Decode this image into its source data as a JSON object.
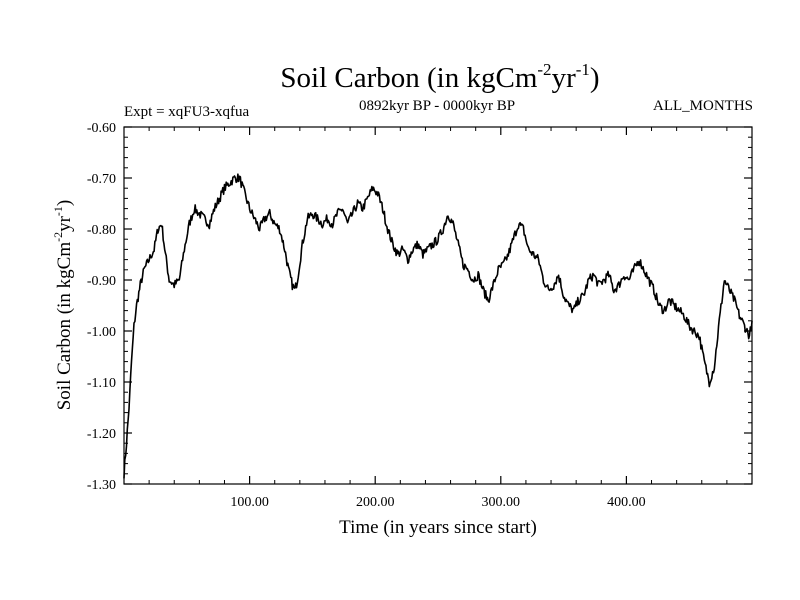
{
  "chart_data": {
    "type": "line",
    "title": "Soil Carbon (in kgCm",
    "title_sup1": "-2",
    "title_mid": "yr",
    "title_sup2": "-1",
    "title_end": ")",
    "subtitle_left": "Expt = xqFU3-xqfua",
    "subtitle_center": "0892kyr BP - 0000kyr BP",
    "subtitle_right": "ALL_MONTHS",
    "xlabel": "Time (in years since start)",
    "ylabel": "Soil Carbon (in kgCm",
    "ylabel_sup1": "-2",
    "ylabel_mid": "yr",
    "ylabel_sup2": "-1",
    "ylabel_end": ")",
    "xlim": [
      0,
      500
    ],
    "ylim": [
      -1.3,
      -0.6
    ],
    "xticks": [
      100,
      200,
      300,
      400
    ],
    "xtick_labels": [
      "100.00",
      "200.00",
      "300.00",
      "400.00"
    ],
    "yticks": [
      -1.3,
      -1.2,
      -1.1,
      -1.0,
      -0.9,
      -0.8,
      -0.7,
      -0.6
    ],
    "ytick_labels": [
      "-1.30",
      "-1.20",
      "-1.10",
      "-1.00",
      "-0.90",
      "-0.80",
      "-0.70",
      "-0.60"
    ],
    "series": [
      {
        "name": "Soil Carbon",
        "color": "#000000",
        "x": [
          0,
          2,
          4,
          6,
          8,
          10,
          13,
          16,
          20,
          24,
          27,
          30,
          33,
          36,
          40,
          44,
          48,
          52,
          56,
          60,
          64,
          68,
          72,
          76,
          80,
          84,
          88,
          92,
          96,
          100,
          104,
          108,
          112,
          116,
          120,
          124,
          128,
          131,
          134,
          136,
          138,
          142,
          146,
          150,
          154,
          158,
          162,
          166,
          170,
          174,
          178,
          182,
          186,
          190,
          194,
          198,
          202,
          206,
          210,
          214,
          218,
          222,
          226,
          230,
          234,
          238,
          242,
          246,
          250,
          254,
          258,
          262,
          266,
          270,
          274,
          278,
          282,
          286,
          290,
          294,
          298,
          302,
          306,
          310,
          314,
          318,
          322,
          326,
          330,
          334,
          338,
          342,
          346,
          350,
          354,
          358,
          362,
          366,
          370,
          374,
          378,
          382,
          386,
          390,
          394,
          398,
          402,
          406,
          410,
          414,
          418,
          422,
          426,
          430,
          434,
          438,
          442,
          446,
          450,
          454,
          458,
          462,
          466,
          470,
          474,
          478,
          482,
          486,
          490,
          494,
          498,
          500
        ],
        "values": [
          -1.28,
          -1.22,
          -1.15,
          -1.06,
          -0.99,
          -0.95,
          -0.91,
          -0.88,
          -0.86,
          -0.84,
          -0.8,
          -0.79,
          -0.85,
          -0.9,
          -0.91,
          -0.9,
          -0.84,
          -0.79,
          -0.76,
          -0.77,
          -0.78,
          -0.79,
          -0.76,
          -0.74,
          -0.72,
          -0.71,
          -0.7,
          -0.7,
          -0.73,
          -0.76,
          -0.78,
          -0.8,
          -0.78,
          -0.77,
          -0.79,
          -0.8,
          -0.84,
          -0.88,
          -0.91,
          -0.92,
          -0.9,
          -0.83,
          -0.78,
          -0.77,
          -0.78,
          -0.79,
          -0.78,
          -0.79,
          -0.77,
          -0.76,
          -0.79,
          -0.77,
          -0.75,
          -0.76,
          -0.74,
          -0.72,
          -0.73,
          -0.76,
          -0.8,
          -0.83,
          -0.85,
          -0.84,
          -0.86,
          -0.84,
          -0.83,
          -0.85,
          -0.84,
          -0.83,
          -0.82,
          -0.8,
          -0.77,
          -0.79,
          -0.83,
          -0.87,
          -0.88,
          -0.9,
          -0.89,
          -0.92,
          -0.94,
          -0.91,
          -0.88,
          -0.87,
          -0.85,
          -0.82,
          -0.79,
          -0.8,
          -0.84,
          -0.85,
          -0.86,
          -0.9,
          -0.92,
          -0.91,
          -0.89,
          -0.93,
          -0.95,
          -0.96,
          -0.94,
          -0.93,
          -0.9,
          -0.89,
          -0.91,
          -0.9,
          -0.89,
          -0.92,
          -0.91,
          -0.89,
          -0.9,
          -0.88,
          -0.86,
          -0.88,
          -0.9,
          -0.92,
          -0.95,
          -0.96,
          -0.94,
          -0.95,
          -0.96,
          -0.97,
          -0.99,
          -1.0,
          -1.01,
          -1.06,
          -1.1,
          -1.07,
          -0.98,
          -0.9,
          -0.92,
          -0.94,
          -0.97,
          -0.99,
          -1.01,
          -0.98
        ]
      }
    ]
  }
}
